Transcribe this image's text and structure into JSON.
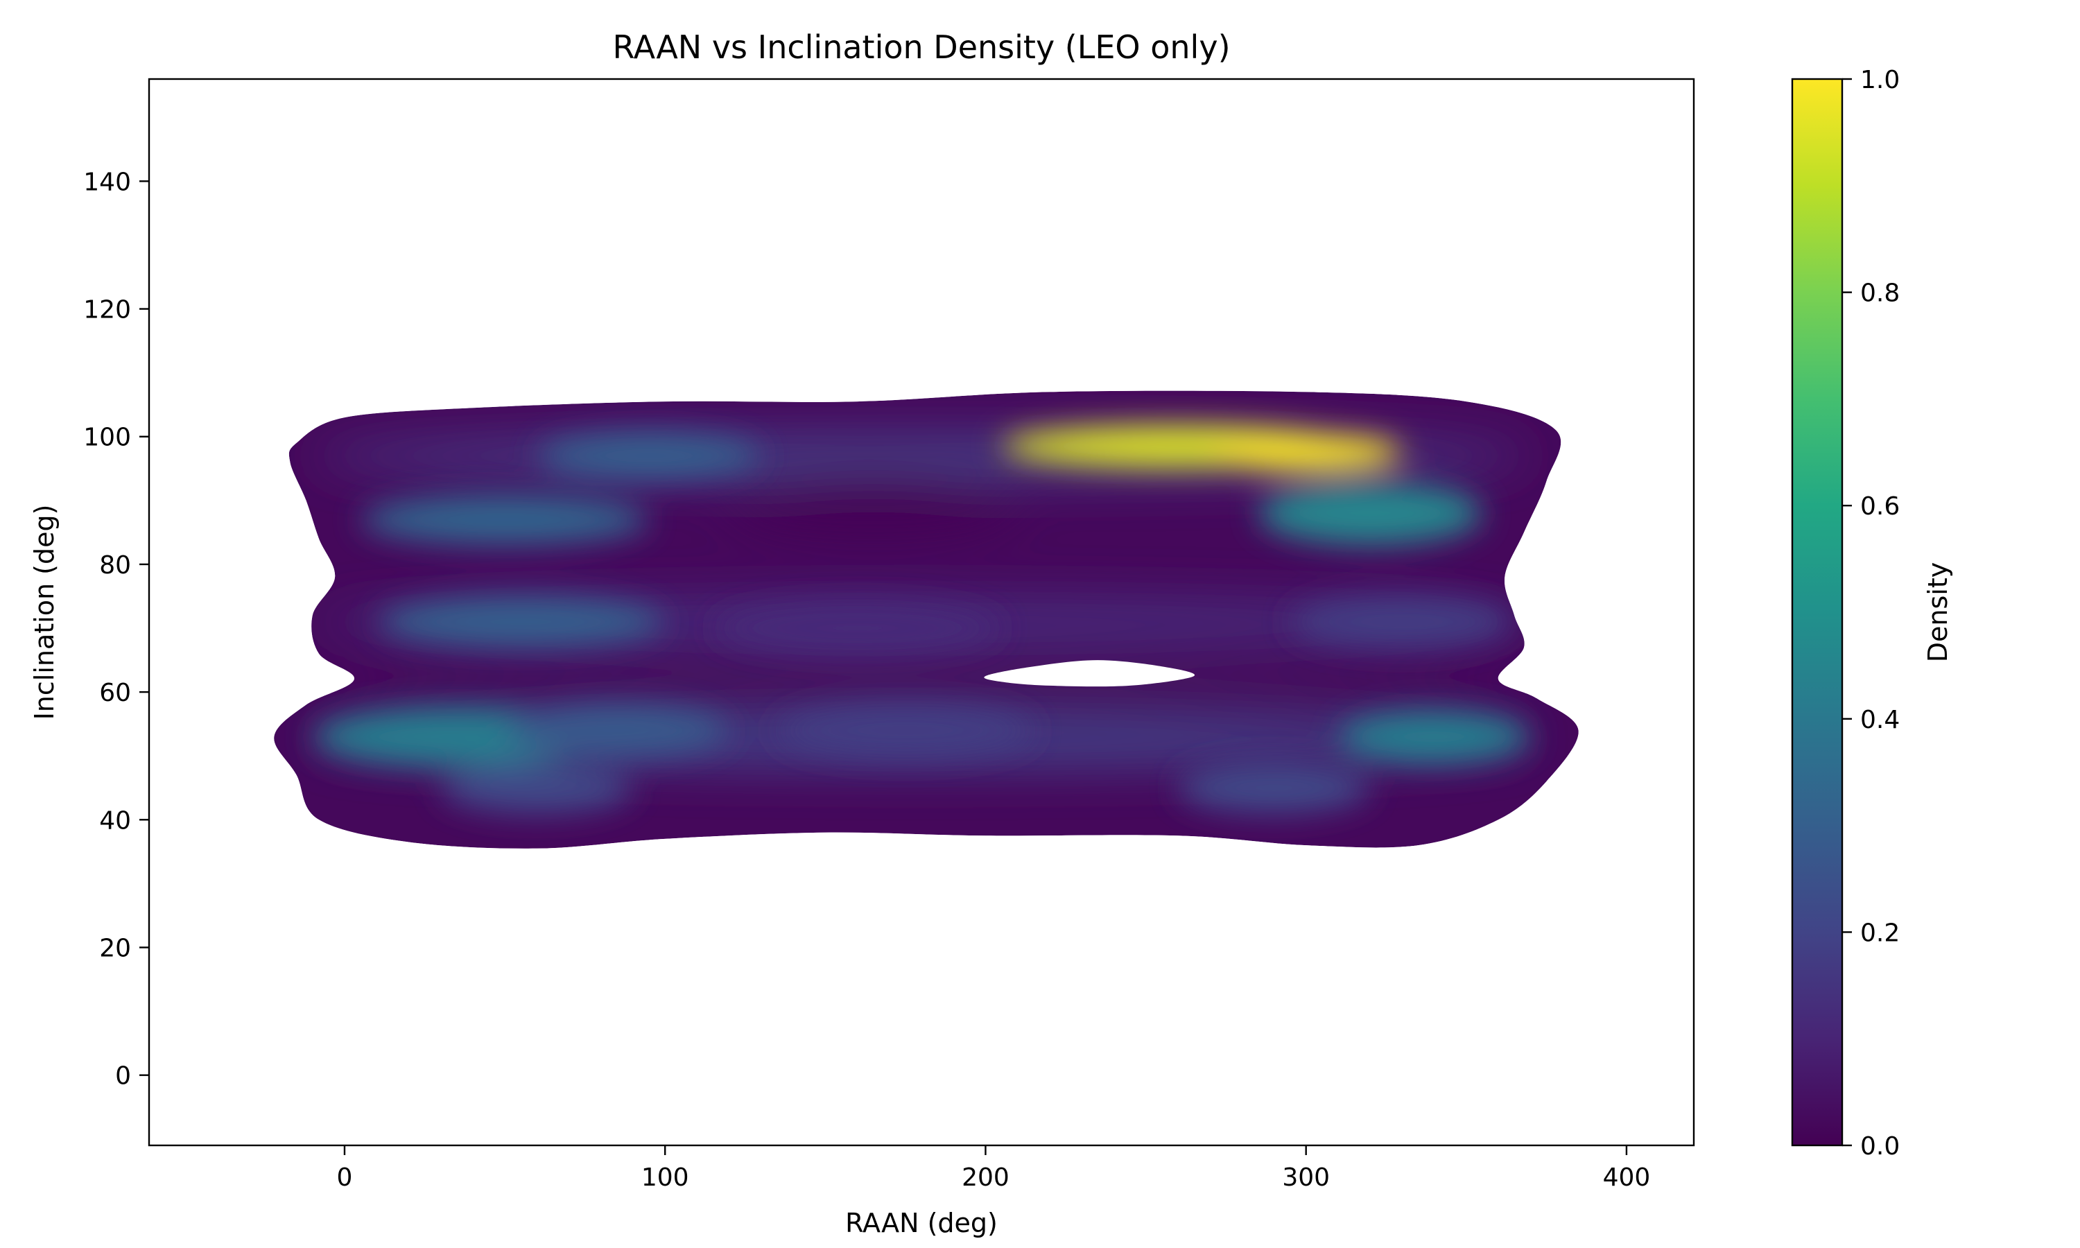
{
  "chart_data": {
    "type": "heatmap",
    "title": "RAAN vs Inclination Density (LEO only)",
    "xlabel": "RAAN (deg)",
    "ylabel": "Inclination (deg)",
    "colorbar_label": "Density",
    "colormap": "viridis",
    "xlim": [
      -61,
      421
    ],
    "ylim": [
      -11,
      156
    ],
    "x_ticks": [
      0,
      100,
      200,
      300,
      400
    ],
    "y_ticks": [
      0,
      20,
      40,
      60,
      80,
      100,
      120,
      140
    ],
    "colorbar_range": [
      0.0,
      1.0
    ],
    "colorbar_ticks": [
      "0.0",
      "0.2",
      "0.4",
      "0.6",
      "0.8",
      "1.0"
    ],
    "grid": false,
    "clusters": [
      {
        "raan": 260,
        "inclination": 98.5,
        "density": 0.95
      },
      {
        "raan": 300,
        "inclination": 97.5,
        "density": 1.0
      },
      {
        "raan": 320,
        "inclination": 88,
        "density": 0.45
      },
      {
        "raan": 35,
        "inclination": 53,
        "density": 0.42
      },
      {
        "raan": 85,
        "inclination": 54,
        "density": 0.28
      },
      {
        "raan": 340,
        "inclination": 53,
        "density": 0.42
      },
      {
        "raan": 290,
        "inclination": 45,
        "density": 0.22
      },
      {
        "raan": 60,
        "inclination": 45,
        "density": 0.22
      },
      {
        "raan": 50,
        "inclination": 87,
        "density": 0.32
      },
      {
        "raan": 55,
        "inclination": 71,
        "density": 0.3
      },
      {
        "raan": 95,
        "inclination": 97,
        "density": 0.3
      },
      {
        "raan": 160,
        "inclination": 70,
        "density": 0.12
      },
      {
        "raan": 330,
        "inclination": 71,
        "density": 0.18
      },
      {
        "raan": 175,
        "inclination": 54,
        "density": 0.18
      }
    ]
  }
}
